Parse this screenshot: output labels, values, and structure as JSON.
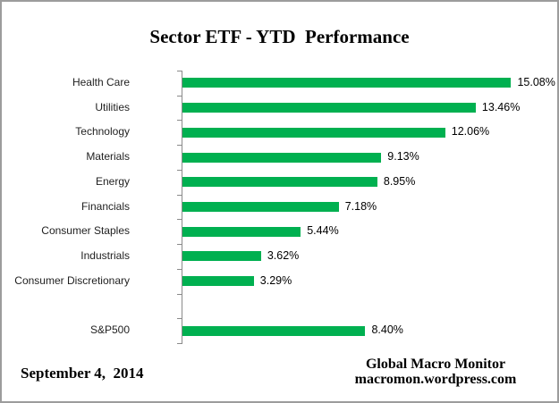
{
  "page": {
    "background": "#FFFFFF",
    "border_color": "#9C9C9C"
  },
  "chart_data": {
    "type": "bar",
    "orientation": "horizontal",
    "title": "Sector ETF - YTD  Performance",
    "categories": [
      "Health Care",
      "Utilities",
      "Technology",
      "Materials",
      "Energy",
      "Financials",
      "Consumer Staples",
      "Industrials",
      "Consumer Discretionary",
      "",
      "S&P500"
    ],
    "values": [
      15.08,
      13.46,
      12.06,
      9.13,
      8.95,
      7.18,
      5.44,
      3.62,
      3.29,
      null,
      8.4
    ],
    "value_labels": [
      "15.08%",
      "13.46%",
      "12.06%",
      "9.13%",
      "8.95%",
      "7.18%",
      "5.44%",
      "3.62%",
      "3.29%",
      "",
      "8.40%"
    ],
    "bar_color": "#00B050",
    "axis_color": "#8A8A8A",
    "label_color": "#1F1F1F",
    "xlim": [
      0,
      16.5
    ],
    "grid": false,
    "legend": false,
    "ylabel": "",
    "xlabel": ""
  },
  "footer": {
    "date": "September 4,  2014",
    "source_line1": "Global Macro Monitor",
    "source_line2": "macromon.wordpress.com"
  }
}
